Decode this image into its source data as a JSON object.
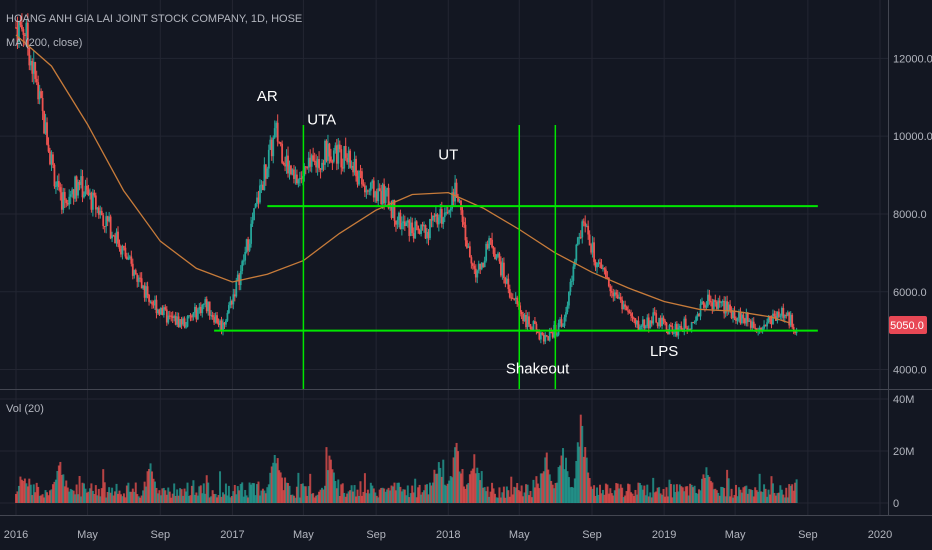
{
  "chart_data": {
    "type": "candlestick",
    "header": {
      "symbol_line": "HOANG ANH GIA LAI JOINT STOCK COMPANY, 1D, HOSE",
      "indicator": "MA (200, close)",
      "volume_label": "Vol (20)"
    },
    "x_ticks": [
      "2016",
      "May",
      "Sep",
      "2017",
      "May",
      "Sep",
      "2018",
      "May",
      "Sep",
      "2019",
      "May",
      "Sep",
      "2020"
    ],
    "price_axis": {
      "ticks": [
        "12000.0",
        "10000.0",
        "8000.0",
        "6000.0",
        "4000.0"
      ],
      "ylim": [
        3500,
        13500
      ],
      "last_price": "5050.0"
    },
    "volume_axis": {
      "ticks": [
        "40M",
        "20M",
        "0"
      ],
      "ylim": [
        0,
        40
      ]
    },
    "price_series": [
      {
        "date": "2016-01",
        "value": 12800
      },
      {
        "date": "2016-02",
        "value": 10500
      },
      {
        "date": "2016-03",
        "value": 8300
      },
      {
        "date": "2016-04",
        "value": 8800
      },
      {
        "date": "2016-05",
        "value": 8200
      },
      {
        "date": "2016-06",
        "value": 7500
      },
      {
        "date": "2016-07",
        "value": 6600
      },
      {
        "date": "2016-08",
        "value": 5800
      },
      {
        "date": "2016-09",
        "value": 5300
      },
      {
        "date": "2016-10",
        "value": 5200
      },
      {
        "date": "2016-11",
        "value": 5700
      },
      {
        "date": "2016-12",
        "value": 5100
      },
      {
        "date": "2017-01",
        "value": 6500
      },
      {
        "date": "2017-02",
        "value": 8500
      },
      {
        "date": "2017-03",
        "value": 10100
      },
      {
        "date": "2017-04",
        "value": 8800
      },
      {
        "date": "2017-05",
        "value": 9200
      },
      {
        "date": "2017-06",
        "value": 9700
      },
      {
        "date": "2017-07",
        "value": 9400
      },
      {
        "date": "2017-08",
        "value": 8600
      },
      {
        "date": "2017-09",
        "value": 8500
      },
      {
        "date": "2017-10",
        "value": 7700
      },
      {
        "date": "2017-11",
        "value": 7500
      },
      {
        "date": "2017-12",
        "value": 7800
      },
      {
        "date": "2018-01",
        "value": 8600
      },
      {
        "date": "2018-02",
        "value": 6400
      },
      {
        "date": "2018-03",
        "value": 7300
      },
      {
        "date": "2018-04",
        "value": 6000
      },
      {
        "date": "2018-05",
        "value": 5200
      },
      {
        "date": "2018-06",
        "value": 4800
      },
      {
        "date": "2018-07",
        "value": 5200
      },
      {
        "date": "2018-08",
        "value": 7800
      },
      {
        "date": "2018-09",
        "value": 6500
      },
      {
        "date": "2018-10",
        "value": 5900
      },
      {
        "date": "2018-11",
        "value": 5100
      },
      {
        "date": "2018-12",
        "value": 5300
      },
      {
        "date": "2019-01",
        "value": 5000
      },
      {
        "date": "2019-02",
        "value": 5200
      },
      {
        "date": "2019-03",
        "value": 5800
      },
      {
        "date": "2019-04",
        "value": 5600
      },
      {
        "date": "2019-05",
        "value": 5300
      },
      {
        "date": "2019-06",
        "value": 5100
      },
      {
        "date": "2019-07",
        "value": 5500
      },
      {
        "date": "2019-08",
        "value": 5050
      }
    ],
    "ma_series": [
      {
        "date": "2016-01",
        "value": 12600
      },
      {
        "date": "2016-03",
        "value": 11800
      },
      {
        "date": "2016-05",
        "value": 10300
      },
      {
        "date": "2016-07",
        "value": 8600
      },
      {
        "date": "2016-09",
        "value": 7300
      },
      {
        "date": "2016-11",
        "value": 6600
      },
      {
        "date": "2017-01",
        "value": 6250
      },
      {
        "date": "2017-03",
        "value": 6450
      },
      {
        "date": "2017-05",
        "value": 6800
      },
      {
        "date": "2017-07",
        "value": 7500
      },
      {
        "date": "2017-09",
        "value": 8100
      },
      {
        "date": "2017-11",
        "value": 8500
      },
      {
        "date": "2018-01",
        "value": 8550
      },
      {
        "date": "2018-03",
        "value": 8150
      },
      {
        "date": "2018-05",
        "value": 7600
      },
      {
        "date": "2018-07",
        "value": 7000
      },
      {
        "date": "2018-09",
        "value": 6500
      },
      {
        "date": "2018-11",
        "value": 6100
      },
      {
        "date": "2019-01",
        "value": 5750
      },
      {
        "date": "2019-03",
        "value": 5550
      },
      {
        "date": "2019-05",
        "value": 5500
      },
      {
        "date": "2019-07",
        "value": 5350
      },
      {
        "date": "2019-08",
        "value": 5200
      }
    ],
    "volume_spikes": [
      {
        "date": "2016-01",
        "value": 14
      },
      {
        "date": "2016-03",
        "value": 18
      },
      {
        "date": "2016-08",
        "value": 16
      },
      {
        "date": "2017-03",
        "value": 22
      },
      {
        "date": "2017-06",
        "value": 20
      },
      {
        "date": "2017-12",
        "value": 21
      },
      {
        "date": "2018-01",
        "value": 25
      },
      {
        "date": "2018-02",
        "value": 22
      },
      {
        "date": "2018-06",
        "value": 21
      },
      {
        "date": "2018-07",
        "value": 25
      },
      {
        "date": "2018-08",
        "value": 37
      },
      {
        "date": "2019-03",
        "value": 18
      }
    ],
    "horizontal_lines": [
      {
        "from": "2017-03",
        "to": "2019-09",
        "value": 8200
      },
      {
        "from": "2016-12",
        "to": "2019-09",
        "value": 5000
      }
    ],
    "vertical_lines": [
      "2017-05",
      "2018-05",
      "2018-07"
    ],
    "annotations": [
      {
        "text": "AR",
        "date": "2017-03",
        "value": 10900
      },
      {
        "text": "UTA",
        "date": "2017-06",
        "value": 10300
      },
      {
        "text": "UT",
        "date": "2018-01",
        "value": 9400
      },
      {
        "text": "Shakeout",
        "date": "2018-06",
        "value": 3900
      },
      {
        "text": "LPS",
        "date": "2019-01",
        "value": 4350
      }
    ],
    "colors": {
      "background": "#131722",
      "up_candle": "#26a69a",
      "down_candle": "#ef5350",
      "ma_line": "#c77b3a",
      "drawings": "#00e600",
      "price_badge": "#e84855",
      "grid": "#232632",
      "separator": "#434651",
      "text": "#b2b5be"
    }
  }
}
